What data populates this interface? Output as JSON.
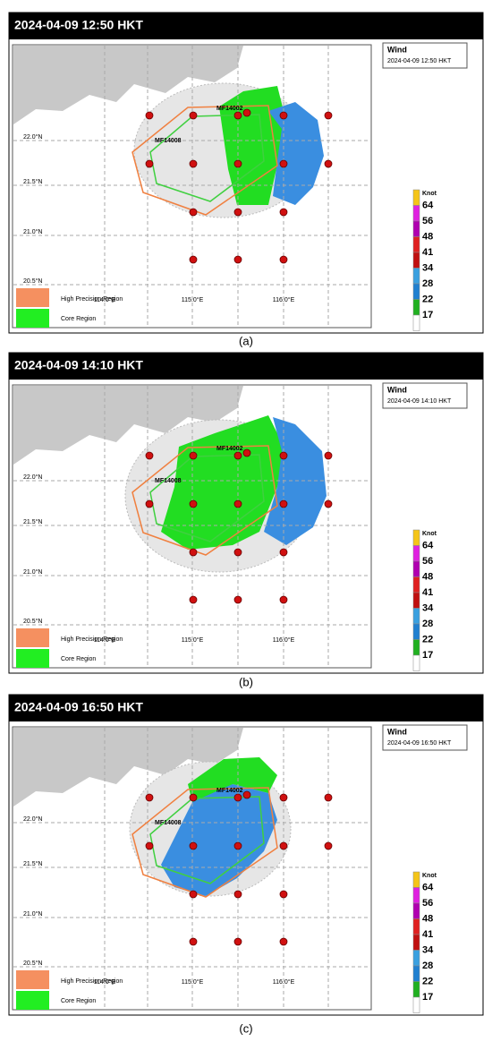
{
  "panels": [
    {
      "title": "2024-04-09 12:50 HKT",
      "legend": {
        "title": "Wind",
        "time": "2024-04-09 12:50 HKT"
      },
      "caption": "(a)"
    },
    {
      "title": "2024-04-09 14:10 HKT",
      "legend": {
        "title": "Wind",
        "time": "2024-04-09 14:10 HKT"
      },
      "caption": "(b)"
    },
    {
      "title": "2024-04-09 16:50 HKT",
      "legend": {
        "title": "Wind",
        "time": "2024-04-09 16:50 HKT"
      },
      "caption": "(c)"
    }
  ],
  "latitudes": [
    "22.0°N",
    "21.5°N",
    "21.0°N",
    "20.5°N"
  ],
  "longitudes": [
    "114.0°E",
    "115.0°E",
    "116.0°E"
  ],
  "stations": [
    "MF14002",
    "MF14008"
  ],
  "regions": [
    "High Precision Region",
    "Core Region"
  ],
  "colorbar": {
    "unit": "Knot",
    "levels": [
      64,
      56,
      48,
      41,
      34,
      28,
      22,
      17
    ]
  }
}
